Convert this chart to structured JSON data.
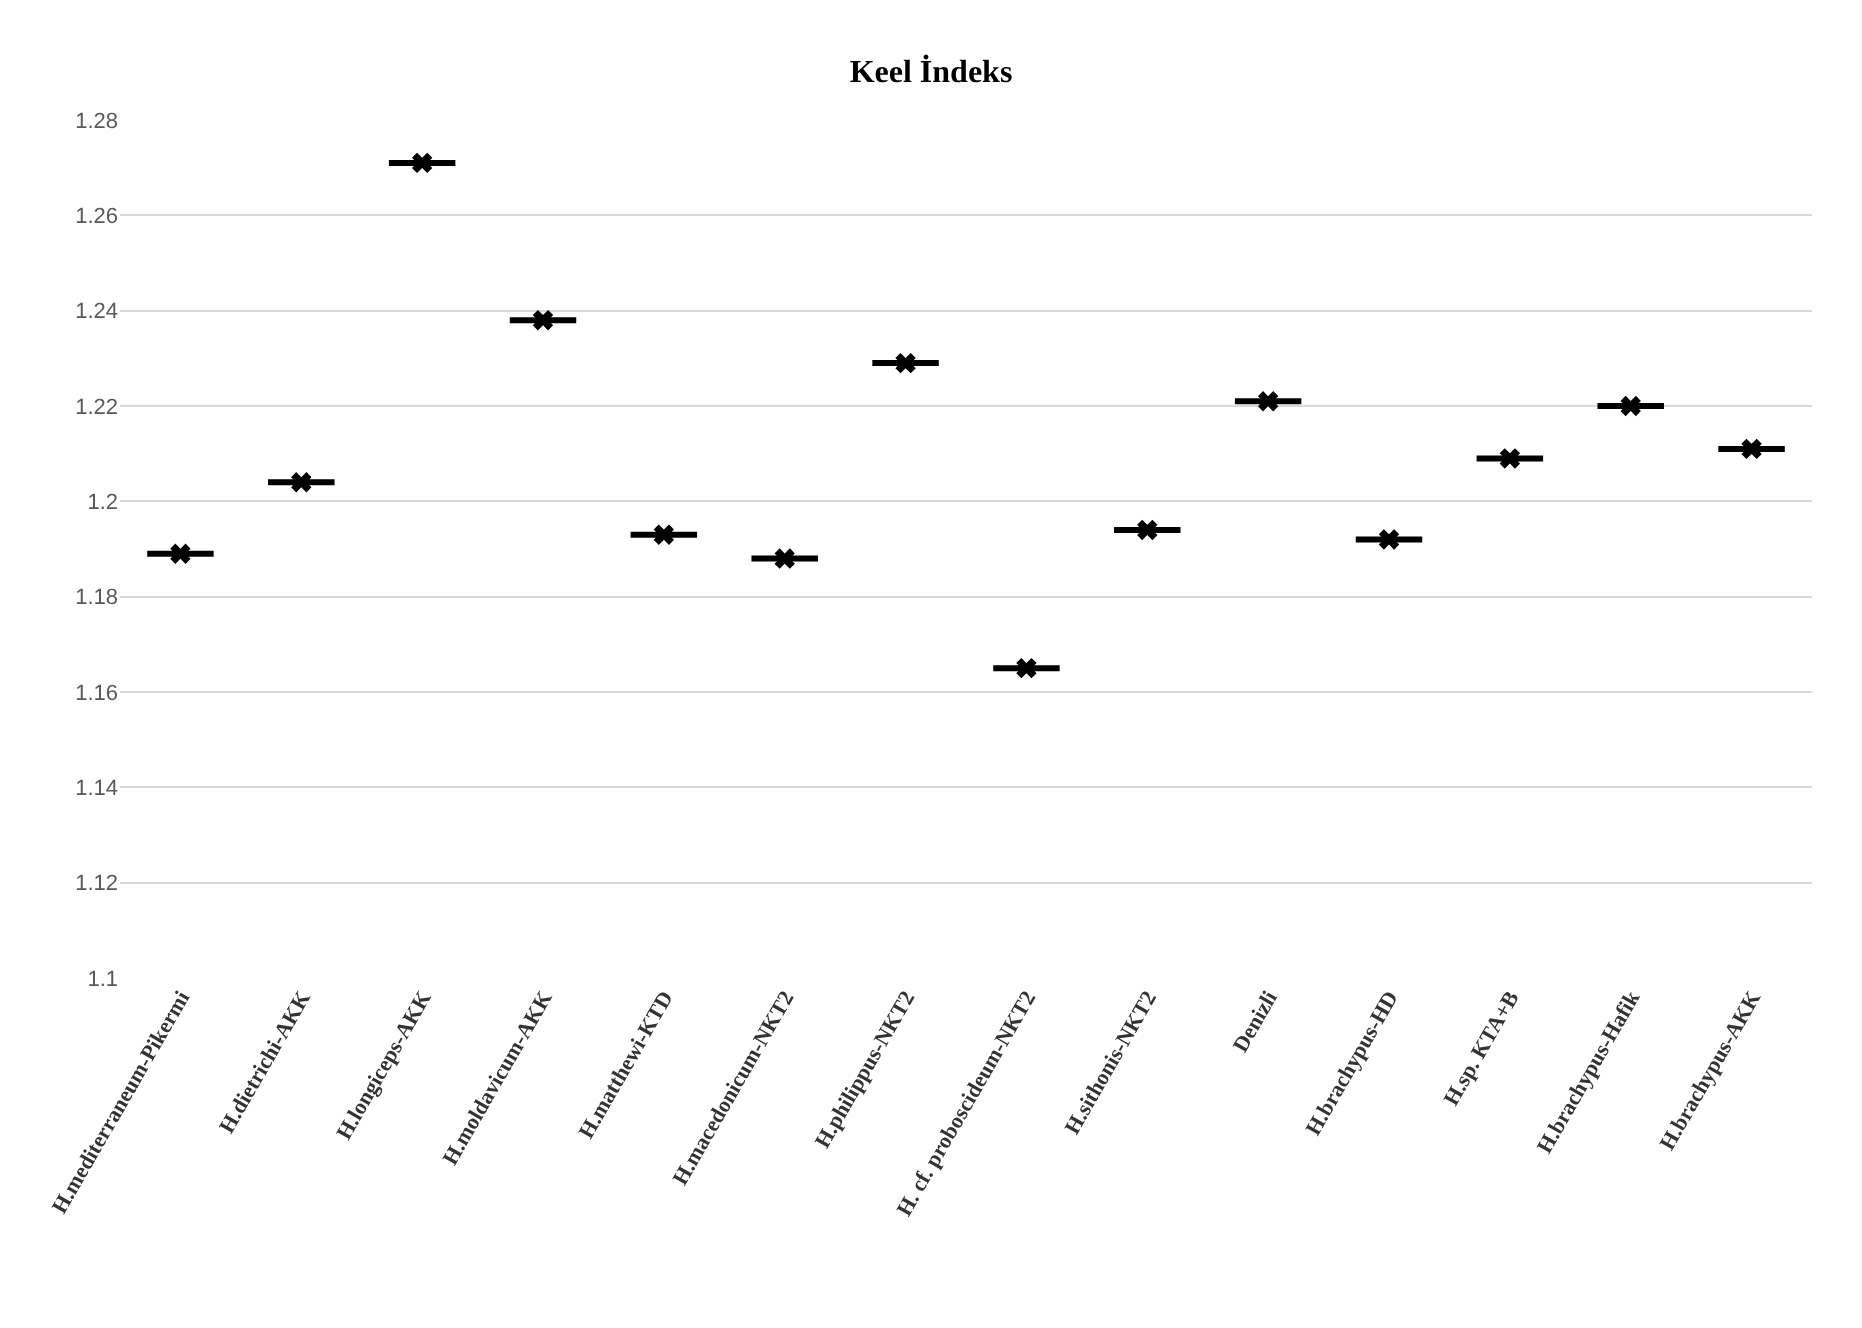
{
  "chart_data": {
    "type": "box",
    "title": "Keel İndeks",
    "categories": [
      "H.mediterraneum-Pikermi",
      "H.dietrichi-AKK",
      "H.longiceps-AKK",
      "H.moldavicum-AKK",
      "H.matthewi-KTD",
      "H.macedonicum-NKT2",
      "H.philippus-NKT2",
      "H. cf. proboscideum-NKT2",
      "H.sithonis-NKT2",
      "Denizli",
      "H.brachypus-HD",
      "H.sp. KTA+B",
      "H.brachypus-Hafik",
      "H.brachypus-AKK"
    ],
    "boxes": [
      {
        "low": 1.189,
        "q1": 1.189,
        "median": 1.189,
        "q3": 1.189,
        "high": 1.189,
        "mean": 1.189
      },
      {
        "low": 1.204,
        "q1": 1.204,
        "median": 1.204,
        "q3": 1.204,
        "high": 1.204,
        "mean": 1.204
      },
      {
        "low": 1.271,
        "q1": 1.271,
        "median": 1.271,
        "q3": 1.271,
        "high": 1.271,
        "mean": 1.271
      },
      {
        "low": 1.238,
        "q1": 1.238,
        "median": 1.238,
        "q3": 1.238,
        "high": 1.238,
        "mean": 1.238
      },
      {
        "low": 1.193,
        "q1": 1.193,
        "median": 1.193,
        "q3": 1.193,
        "high": 1.193,
        "mean": 1.193
      },
      {
        "low": 1.188,
        "q1": 1.188,
        "median": 1.188,
        "q3": 1.188,
        "high": 1.188,
        "mean": 1.188
      },
      {
        "low": 1.229,
        "q1": 1.229,
        "median": 1.229,
        "q3": 1.229,
        "high": 1.229,
        "mean": 1.229
      },
      {
        "low": 1.165,
        "q1": 1.165,
        "median": 1.165,
        "q3": 1.165,
        "high": 1.165,
        "mean": 1.165
      },
      {
        "low": 1.194,
        "q1": 1.194,
        "median": 1.194,
        "q3": 1.194,
        "high": 1.194,
        "mean": 1.194
      },
      {
        "low": 1.221,
        "q1": 1.221,
        "median": 1.221,
        "q3": 1.221,
        "high": 1.221,
        "mean": 1.221
      },
      {
        "low": 1.192,
        "q1": 1.192,
        "median": 1.192,
        "q3": 1.192,
        "high": 1.192,
        "mean": 1.192
      },
      {
        "low": 1.209,
        "q1": 1.209,
        "median": 1.209,
        "q3": 1.209,
        "high": 1.209,
        "mean": 1.209
      },
      {
        "low": 1.22,
        "q1": 1.22,
        "median": 1.22,
        "q3": 1.22,
        "high": 1.22,
        "mean": 1.22
      },
      {
        "low": 1.211,
        "q1": 1.211,
        "median": 1.211,
        "q3": 1.211,
        "high": 1.211,
        "mean": 1.211
      }
    ],
    "color": "#000000",
    "ylim": [
      1.1,
      1.28
    ],
    "yticks": [
      1.1,
      1.12,
      1.14,
      1.16,
      1.18,
      {
        "value": 1.2,
        "label": "1.2"
      },
      1.22,
      1.24,
      1.26,
      1.28
    ],
    "grid": "y",
    "marker": "cross"
  }
}
